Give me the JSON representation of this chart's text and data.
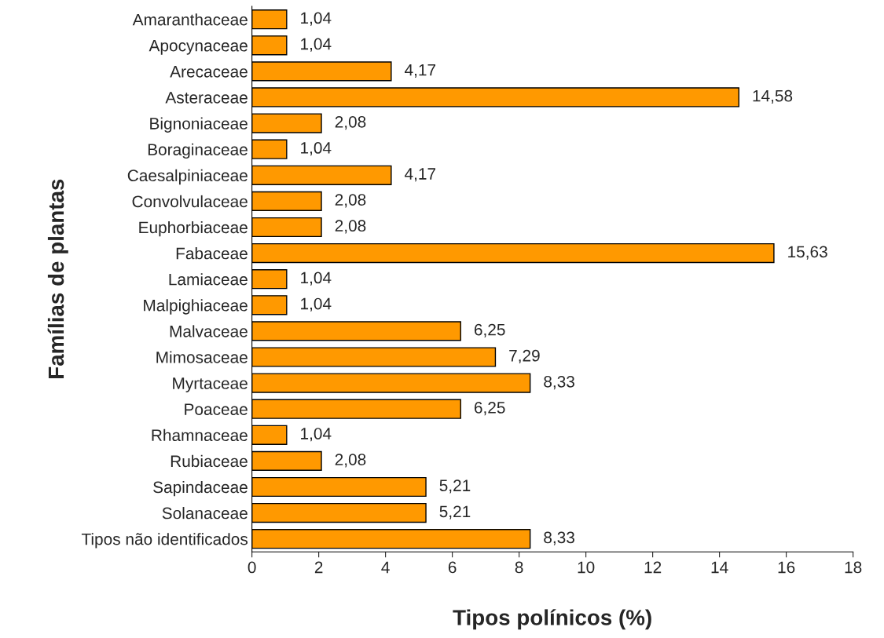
{
  "chart_data": {
    "type": "bar",
    "orientation": "horizontal",
    "xlabel": "Tipos polínicos (%)",
    "ylabel": "Famílias de plantas",
    "categories": [
      "Amaranthaceae",
      "Apocynaceae",
      "Arecaceae",
      "Asteraceae",
      "Bignoniaceae",
      "Boraginaceae",
      "Caesalpiniaceae",
      "Convolvulaceae",
      "Euphorbiaceae",
      "Fabaceae",
      "Lamiaceae",
      "Malpighiaceae",
      "Malvaceae",
      "Mimosaceae",
      "Myrtaceae",
      "Poaceae",
      "Rhamnaceae",
      "Rubiaceae",
      "Sapindaceae",
      "Solanaceae",
      "Tipos não identificados"
    ],
    "values": [
      1.04,
      1.04,
      4.17,
      14.58,
      2.08,
      1.04,
      4.17,
      2.08,
      2.08,
      15.63,
      1.04,
      1.04,
      6.25,
      7.29,
      8.33,
      6.25,
      1.04,
      2.08,
      5.21,
      5.21,
      8.33
    ],
    "value_labels": [
      "1,04",
      "1,04",
      "4,17",
      "14,58",
      "2,08",
      "1,04",
      "4,17",
      "2,08",
      "2,08",
      "15,63",
      "1,04",
      "1,04",
      "6,25",
      "7,29",
      "8,33",
      "6,25",
      "1,04",
      "2,08",
      "5,21",
      "5,21",
      "8,33"
    ],
    "color": "#ff9900",
    "xlim": [
      0,
      18
    ],
    "xticks": [
      0,
      2,
      4,
      6,
      8,
      10,
      12,
      14,
      16,
      18
    ],
    "grid": false
  }
}
